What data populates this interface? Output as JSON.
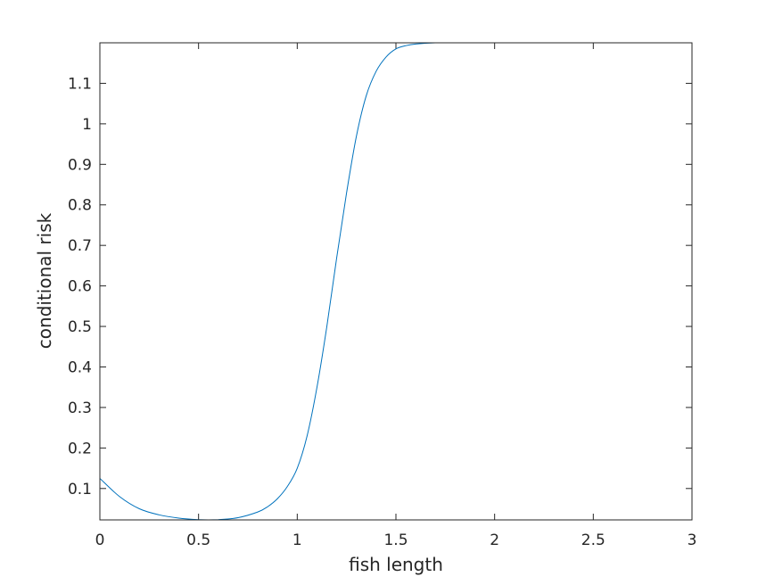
{
  "chart_data": {
    "type": "line",
    "title": "",
    "xlabel": "fish length",
    "ylabel": "conditional risk",
    "xlim": [
      0,
      3
    ],
    "ylim": [
      0.0225,
      1.2
    ],
    "grid": false,
    "box": true,
    "line_color": "#0072bd",
    "axis_color": "#262626",
    "x_ticks": [
      {
        "value": 0,
        "label": "0"
      },
      {
        "value": 0.5,
        "label": "0.5"
      },
      {
        "value": 1,
        "label": "1"
      },
      {
        "value": 1.5,
        "label": "1.5"
      },
      {
        "value": 2,
        "label": "2"
      },
      {
        "value": 2.5,
        "label": "2.5"
      },
      {
        "value": 3,
        "label": "3"
      }
    ],
    "y_ticks": [
      {
        "value": 0.1,
        "label": "0.1"
      },
      {
        "value": 0.2,
        "label": "0.2"
      },
      {
        "value": 0.3,
        "label": "0.3"
      },
      {
        "value": 0.4,
        "label": "0.4"
      },
      {
        "value": 0.5,
        "label": "0.5"
      },
      {
        "value": 0.6,
        "label": "0.6"
      },
      {
        "value": 0.7,
        "label": "0.7"
      },
      {
        "value": 0.8,
        "label": "0.8"
      },
      {
        "value": 0.9,
        "label": "0.9"
      },
      {
        "value": 1,
        "label": "1"
      },
      {
        "value": 1.1,
        "label": "1.1"
      }
    ],
    "series": [
      {
        "x": [
          0,
          0.1,
          0.2,
          0.3,
          0.4,
          0.5,
          0.55,
          0.6,
          0.7,
          0.8,
          0.85,
          0.9,
          0.95,
          1.0,
          1.05,
          1.1,
          1.15,
          1.2,
          1.25,
          1.3,
          1.35,
          1.4,
          1.45,
          1.5,
          1.55,
          1.6,
          1.7,
          1.8,
          1.9,
          2.0,
          2.5,
          3.0
        ],
        "y": [
          0.125,
          0.08,
          0.05,
          0.035,
          0.027,
          0.023,
          0.0225,
          0.023,
          0.028,
          0.042,
          0.055,
          0.075,
          0.105,
          0.15,
          0.23,
          0.35,
          0.5,
          0.67,
          0.83,
          0.97,
          1.07,
          1.13,
          1.165,
          1.185,
          1.193,
          1.197,
          1.2,
          1.2,
          1.2,
          1.2,
          1.2,
          1.2
        ]
      }
    ]
  }
}
